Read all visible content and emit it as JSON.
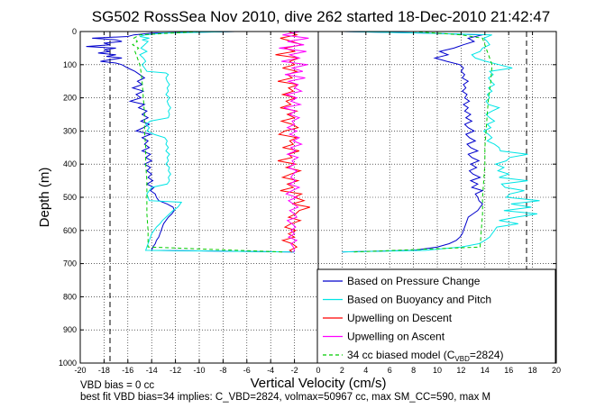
{
  "chart_data": {
    "type": "line",
    "title": "SG502 RossSea Nov 2010, dive 262 started 18-Dec-2010 21:42:47",
    "xlabel": "Vertical Velocity (cm/s)",
    "ylabel": "Depth (m)",
    "xlim": [
      -20,
      20
    ],
    "ylim": [
      1000,
      0
    ],
    "y_reversed": true,
    "grid": true,
    "x_ticks": [
      -20,
      -18,
      -16,
      -14,
      -12,
      -10,
      -8,
      -6,
      -4,
      -2,
      0,
      2,
      4,
      6,
      8,
      10,
      12,
      14,
      16,
      18,
      20
    ],
    "y_ticks": [
      0,
      100,
      200,
      300,
      400,
      500,
      600,
      700,
      800,
      900,
      1000
    ],
    "legend_position": "bottom-right",
    "legend": [
      {
        "label": "Based on Pressure Change",
        "color": "#0000cc",
        "style": "solid"
      },
      {
        "label": "Based on Buoyancy and Pitch",
        "color": "#00e5e5",
        "style": "solid"
      },
      {
        "label": "Upwelling on Descent",
        "color": "#ff0000",
        "style": "solid"
      },
      {
        "label": "Upwelling on Ascent",
        "color": "#ff00ff",
        "style": "solid"
      },
      {
        "label": "34 cc biased model (C",
        "sub": "VBD",
        "suffix": "=2824)",
        "color": "#00cc00",
        "style": "dashed"
      }
    ],
    "reference_lines_x": [
      -17.5,
      17.5
    ],
    "series": [
      {
        "role": "pressure-change",
        "color": "#0000cc",
        "descent": {
          "depth": [
            0,
            5,
            10,
            15,
            20,
            25,
            30,
            35,
            40,
            45,
            50,
            55,
            60,
            65,
            70,
            75,
            80,
            85,
            90,
            95,
            100,
            110,
            120,
            130,
            140,
            150,
            160,
            170,
            180,
            190,
            200,
            210,
            220,
            230,
            240,
            250,
            260,
            270,
            280,
            290,
            300,
            310,
            320,
            330,
            340,
            350,
            360,
            370,
            380,
            390,
            400,
            410,
            420,
            430,
            440,
            450,
            460,
            470,
            480,
            490,
            500,
            510,
            520,
            530,
            540,
            550,
            560,
            570,
            580,
            590,
            600,
            610,
            620,
            630,
            640,
            650,
            660,
            665
          ],
          "velocity": [
            -7,
            -14,
            -15.5,
            -16,
            -19,
            -17,
            -16.5,
            -18,
            -17.5,
            -19.5,
            -17,
            -18,
            -17.5,
            -18.5,
            -17,
            -17.8,
            -16.5,
            -17.5,
            -18.3,
            -17,
            -16.5,
            -16,
            -15.4,
            -15,
            -14.6,
            -15.2,
            -14.8,
            -15.6,
            -14.7,
            -15.3,
            -14.9,
            -15.8,
            -14.6,
            -15.1,
            -14.4,
            -14.8,
            -14.3,
            -14.9,
            -14.2,
            -14.7,
            -15.3,
            -14.1,
            -14.8,
            -14.3,
            -14.6,
            -14.2,
            -14.8,
            -14.1,
            -14.5,
            -14,
            -14.6,
            -14.1,
            -14.4,
            -14,
            -14.3,
            -13.9,
            -14.4,
            -13.8,
            -14.1,
            -13.7,
            -13.6,
            -13.4,
            -12.7,
            -12.2,
            -12.1,
            -12.3,
            -12.6,
            -12.8,
            -13,
            -13.1,
            -13.2,
            -13.3,
            -13.4,
            -13.6,
            -13.7,
            -13.9,
            -14,
            -2
          ]
        },
        "ascent": {
          "depth": [
            665,
            660,
            650,
            640,
            630,
            620,
            610,
            600,
            590,
            580,
            570,
            560,
            550,
            540,
            530,
            520,
            510,
            500,
            490,
            480,
            470,
            460,
            450,
            440,
            430,
            420,
            410,
            400,
            390,
            380,
            370,
            360,
            350,
            340,
            330,
            320,
            310,
            300,
            290,
            280,
            270,
            260,
            250,
            240,
            230,
            220,
            210,
            200,
            190,
            180,
            170,
            160,
            150,
            140,
            130,
            120,
            110,
            100,
            90,
            80,
            70,
            60,
            50,
            40,
            30,
            20,
            10,
            5,
            0
          ],
          "velocity": [
            2,
            8,
            10,
            11,
            11.6,
            11.9,
            12.1,
            12.2,
            12.3,
            12.4,
            12.5,
            12.6,
            13,
            13.4,
            13.6,
            13.8,
            13.5,
            13.4,
            13.2,
            13.8,
            12.9,
            13.4,
            12.8,
            13.6,
            13.0,
            12.7,
            13.3,
            12.8,
            13.5,
            12.9,
            12.6,
            13.4,
            12.8,
            12.5,
            13.2,
            12.7,
            12.4,
            13.1,
            12.6,
            12.3,
            12.9,
            12.4,
            12.8,
            12.3,
            12.6,
            12.2,
            12.7,
            12.3,
            12.5,
            12.1,
            12.4,
            12.2,
            12.6,
            12.1,
            12.3,
            12.0,
            12.2,
            11.9,
            10.8,
            9.8,
            10.9,
            10.2,
            11.4,
            12.2,
            13.1,
            12.6,
            13.8,
            9,
            2
          ]
        }
      },
      {
        "role": "buoyancy-pitch",
        "color": "#00e5e5",
        "descent": {
          "depth": [
            0,
            5,
            10,
            15,
            20,
            25,
            30,
            40,
            50,
            60,
            70,
            80,
            90,
            100,
            110,
            120,
            125,
            130,
            140,
            150,
            160,
            170,
            180,
            190,
            200,
            210,
            220,
            230,
            240,
            250,
            260,
            270,
            280,
            290,
            300,
            310,
            320,
            330,
            340,
            350,
            360,
            370,
            380,
            390,
            400,
            410,
            420,
            430,
            440,
            450,
            460,
            470,
            480,
            490,
            500,
            510,
            515,
            520,
            530,
            540,
            550,
            560,
            570,
            580,
            590,
            600,
            610,
            620,
            630,
            640,
            650,
            660,
            665
          ],
          "velocity": [
            -7,
            -13,
            -14.5,
            -15,
            -14.2,
            -14.8,
            -14.3,
            -14.6,
            -14.9,
            -14.4,
            -15,
            -14.7,
            -14.5,
            -14.8,
            -14.6,
            -14.4,
            -12.8,
            -12.6,
            -12.8,
            -12.7,
            -12.5,
            -12.7,
            -12.6,
            -12.8,
            -12.5,
            -12.7,
            -12.6,
            -12.4,
            -12.6,
            -12.5,
            -12.6,
            -14.1,
            -14.5,
            -14.2,
            -14.4,
            -13.8,
            -12.9,
            -12.7,
            -12.8,
            -12.6,
            -12.8,
            -12.5,
            -12.7,
            -12.6,
            -12.8,
            -12.5,
            -12.6,
            -12.4,
            -12.6,
            -12.5,
            -12.7,
            -14,
            -14.2,
            -14.4,
            -14.3,
            -14.2,
            -11.5,
            -11.6,
            -11.8,
            -12.2,
            -12.5,
            -12.8,
            -13.1,
            -13.3,
            -13.6,
            -13.8,
            -14,
            -14.1,
            -14.2,
            -14.3,
            -14.4,
            -14.5,
            -2
          ]
        },
        "ascent": {
          "depth": [
            665,
            660,
            650,
            640,
            630,
            620,
            610,
            600,
            590,
            580,
            570,
            560,
            550,
            540,
            530,
            520,
            510,
            500,
            490,
            480,
            470,
            460,
            450,
            440,
            430,
            420,
            410,
            400,
            390,
            380,
            370,
            360,
            350,
            340,
            330,
            320,
            310,
            300,
            290,
            280,
            270,
            260,
            250,
            240,
            230,
            220,
            210,
            200,
            190,
            180,
            170,
            160,
            150,
            140,
            130,
            120,
            110,
            100,
            90,
            80,
            70,
            60,
            50,
            40,
            30,
            20,
            10,
            5,
            0
          ],
          "velocity": [
            2,
            9,
            12,
            13.5,
            14,
            14.4,
            14.6,
            14.8,
            15,
            16.8,
            15.2,
            16.6,
            18.4,
            15.6,
            17.9,
            16.2,
            18.6,
            15.8,
            16.1,
            17.3,
            15.7,
            15.4,
            17.6,
            15.2,
            16,
            15.1,
            15.6,
            14.9,
            15.8,
            16.1,
            17.6,
            15.3,
            15.2,
            14.8,
            14.2,
            14.6,
            14.3,
            13.9,
            14.5,
            14.2,
            14.8,
            14.4,
            14.1,
            14.6,
            15.2,
            14.3,
            14.1,
            14.4,
            14.2,
            14.6,
            14.3,
            14.8,
            14.5,
            14.3,
            14.7,
            14.4,
            16.3,
            15.2,
            14.1,
            13.2,
            12.9,
            13.6,
            13.8,
            14.4,
            14.2,
            13.9,
            14.6,
            9,
            2
          ]
        }
      },
      {
        "role": "upwelling-descent",
        "color": "#ff0000",
        "depth": [
          0,
          10,
          20,
          30,
          40,
          50,
          60,
          70,
          80,
          90,
          100,
          110,
          120,
          130,
          140,
          150,
          160,
          170,
          180,
          190,
          200,
          210,
          220,
          230,
          240,
          250,
          260,
          270,
          280,
          290,
          300,
          310,
          320,
          330,
          340,
          350,
          360,
          370,
          380,
          390,
          400,
          410,
          420,
          430,
          440,
          450,
          460,
          470,
          480,
          490,
          500,
          510,
          520,
          530,
          540,
          550,
          560,
          570,
          580,
          590,
          600,
          610,
          620,
          630,
          640,
          650,
          660,
          665
        ],
        "velocity": [
          -2.5,
          -1.8,
          -3.2,
          -2.2,
          -1.4,
          -2.8,
          -2.0,
          -3.6,
          -1.6,
          -2.4,
          -2.0,
          -3.0,
          -1.8,
          -2.6,
          -2.2,
          -3.4,
          -1.7,
          -2.5,
          -2.1,
          -3.0,
          -1.9,
          -2.7,
          -2.3,
          -3.2,
          -1.8,
          -2.6,
          -2.0,
          -3.1,
          -2.2,
          -1.7,
          -2.8,
          -3.3,
          -1.8,
          -2.4,
          -2.1,
          -3.0,
          -1.6,
          -2.5,
          -2.2,
          -3.4,
          -1.9,
          -2.7,
          -1.5,
          -2.3,
          -3.0,
          -1.7,
          -2.6,
          -2.1,
          -3.2,
          -1.4,
          -2.0,
          -1.2,
          -2.2,
          -0.7,
          -1.6,
          -1.9,
          -2.5,
          -1.5,
          -2.3,
          -2.8,
          -1.9,
          -2.5,
          -2.0,
          -3.0,
          -2.2,
          -1.8,
          -2.4,
          -2.2
        ]
      },
      {
        "role": "upwelling-ascent",
        "color": "#ff00ff",
        "depth": [
          0,
          10,
          20,
          30,
          40,
          50,
          60,
          70,
          80,
          90,
          100,
          110,
          120,
          130,
          140,
          150,
          160,
          170,
          180,
          190,
          200,
          210,
          220,
          230,
          240,
          250,
          260,
          270,
          280,
          290,
          300,
          310,
          320,
          330,
          340,
          350,
          360,
          370,
          380,
          390,
          400,
          410,
          420,
          430,
          440,
          450,
          460,
          470,
          480,
          490,
          500,
          510,
          520,
          530,
          540,
          550,
          560,
          570,
          580,
          590,
          600,
          610,
          620,
          630,
          640,
          650,
          660,
          665
        ],
        "velocity": [
          -1.5,
          -3.0,
          -0.8,
          -2.6,
          -1.2,
          -3.3,
          -1.0,
          -2.4,
          -1.6,
          -3.1,
          -0.9,
          -2.2,
          -1.3,
          -2.8,
          -1.1,
          -2.5,
          -1.7,
          -2.0,
          -1.4,
          -2.7,
          -1.8,
          -2.3,
          -1.5,
          -2.9,
          -1.9,
          -2.4,
          -1.6,
          -2.2,
          -2.0,
          -2.6,
          -1.8,
          -2.4,
          -1.6,
          -2.1,
          -1.4,
          -2.3,
          -1.9,
          -2.6,
          -1.7,
          -2.2,
          -2.0,
          -2.5,
          -1.8,
          -2.1,
          -2.3,
          -1.9,
          -2.4,
          -1.6,
          -2.2,
          -2.7,
          -1.8,
          -2.5,
          -2.1,
          -1.7,
          -2.4,
          -2.0,
          -1.8,
          -2.6,
          -2.2,
          -1.9,
          -2.3,
          -2.0,
          -2.5,
          -1.8,
          -2.3,
          -2.1,
          -2.0,
          -2.1
        ]
      },
      {
        "role": "biased-model",
        "color": "#00cc00",
        "style": "dashed",
        "descent": {
          "depth": [
            0,
            10,
            20,
            30,
            40,
            50,
            60,
            80,
            100,
            120,
            150,
            200,
            250,
            300,
            350,
            400,
            450,
            500,
            550,
            600,
            650,
            665
          ],
          "velocity": [
            -10,
            -15,
            -15.5,
            -15.2,
            -15.6,
            -15.1,
            -15.4,
            -15.2,
            -15.0,
            -14.9,
            -14.8,
            -14.7,
            -14.6,
            -14.6,
            -14.5,
            -14.5,
            -14.4,
            -14.4,
            -14.4,
            -14.3,
            -14.3,
            -3
          ]
        },
        "ascent": {
          "depth": [
            665,
            650,
            600,
            550,
            500,
            450,
            400,
            350,
            300,
            250,
            200,
            150,
            100,
            80,
            60,
            40,
            20,
            10,
            0
          ],
          "velocity": [
            3,
            13.6,
            13.7,
            13.8,
            13.8,
            13.9,
            14.0,
            14.0,
            14.1,
            14.2,
            14.3,
            14.5,
            14.6,
            14.4,
            14.2,
            14.0,
            13.8,
            12,
            8
          ]
        }
      }
    ]
  },
  "notes": {
    "line1": "VBD bias = 0 cc",
    "line2": "best fit VBD bias=34 implies: C_VBD=2824, volmax=50967 cc, max SM_CC=590, max M"
  }
}
